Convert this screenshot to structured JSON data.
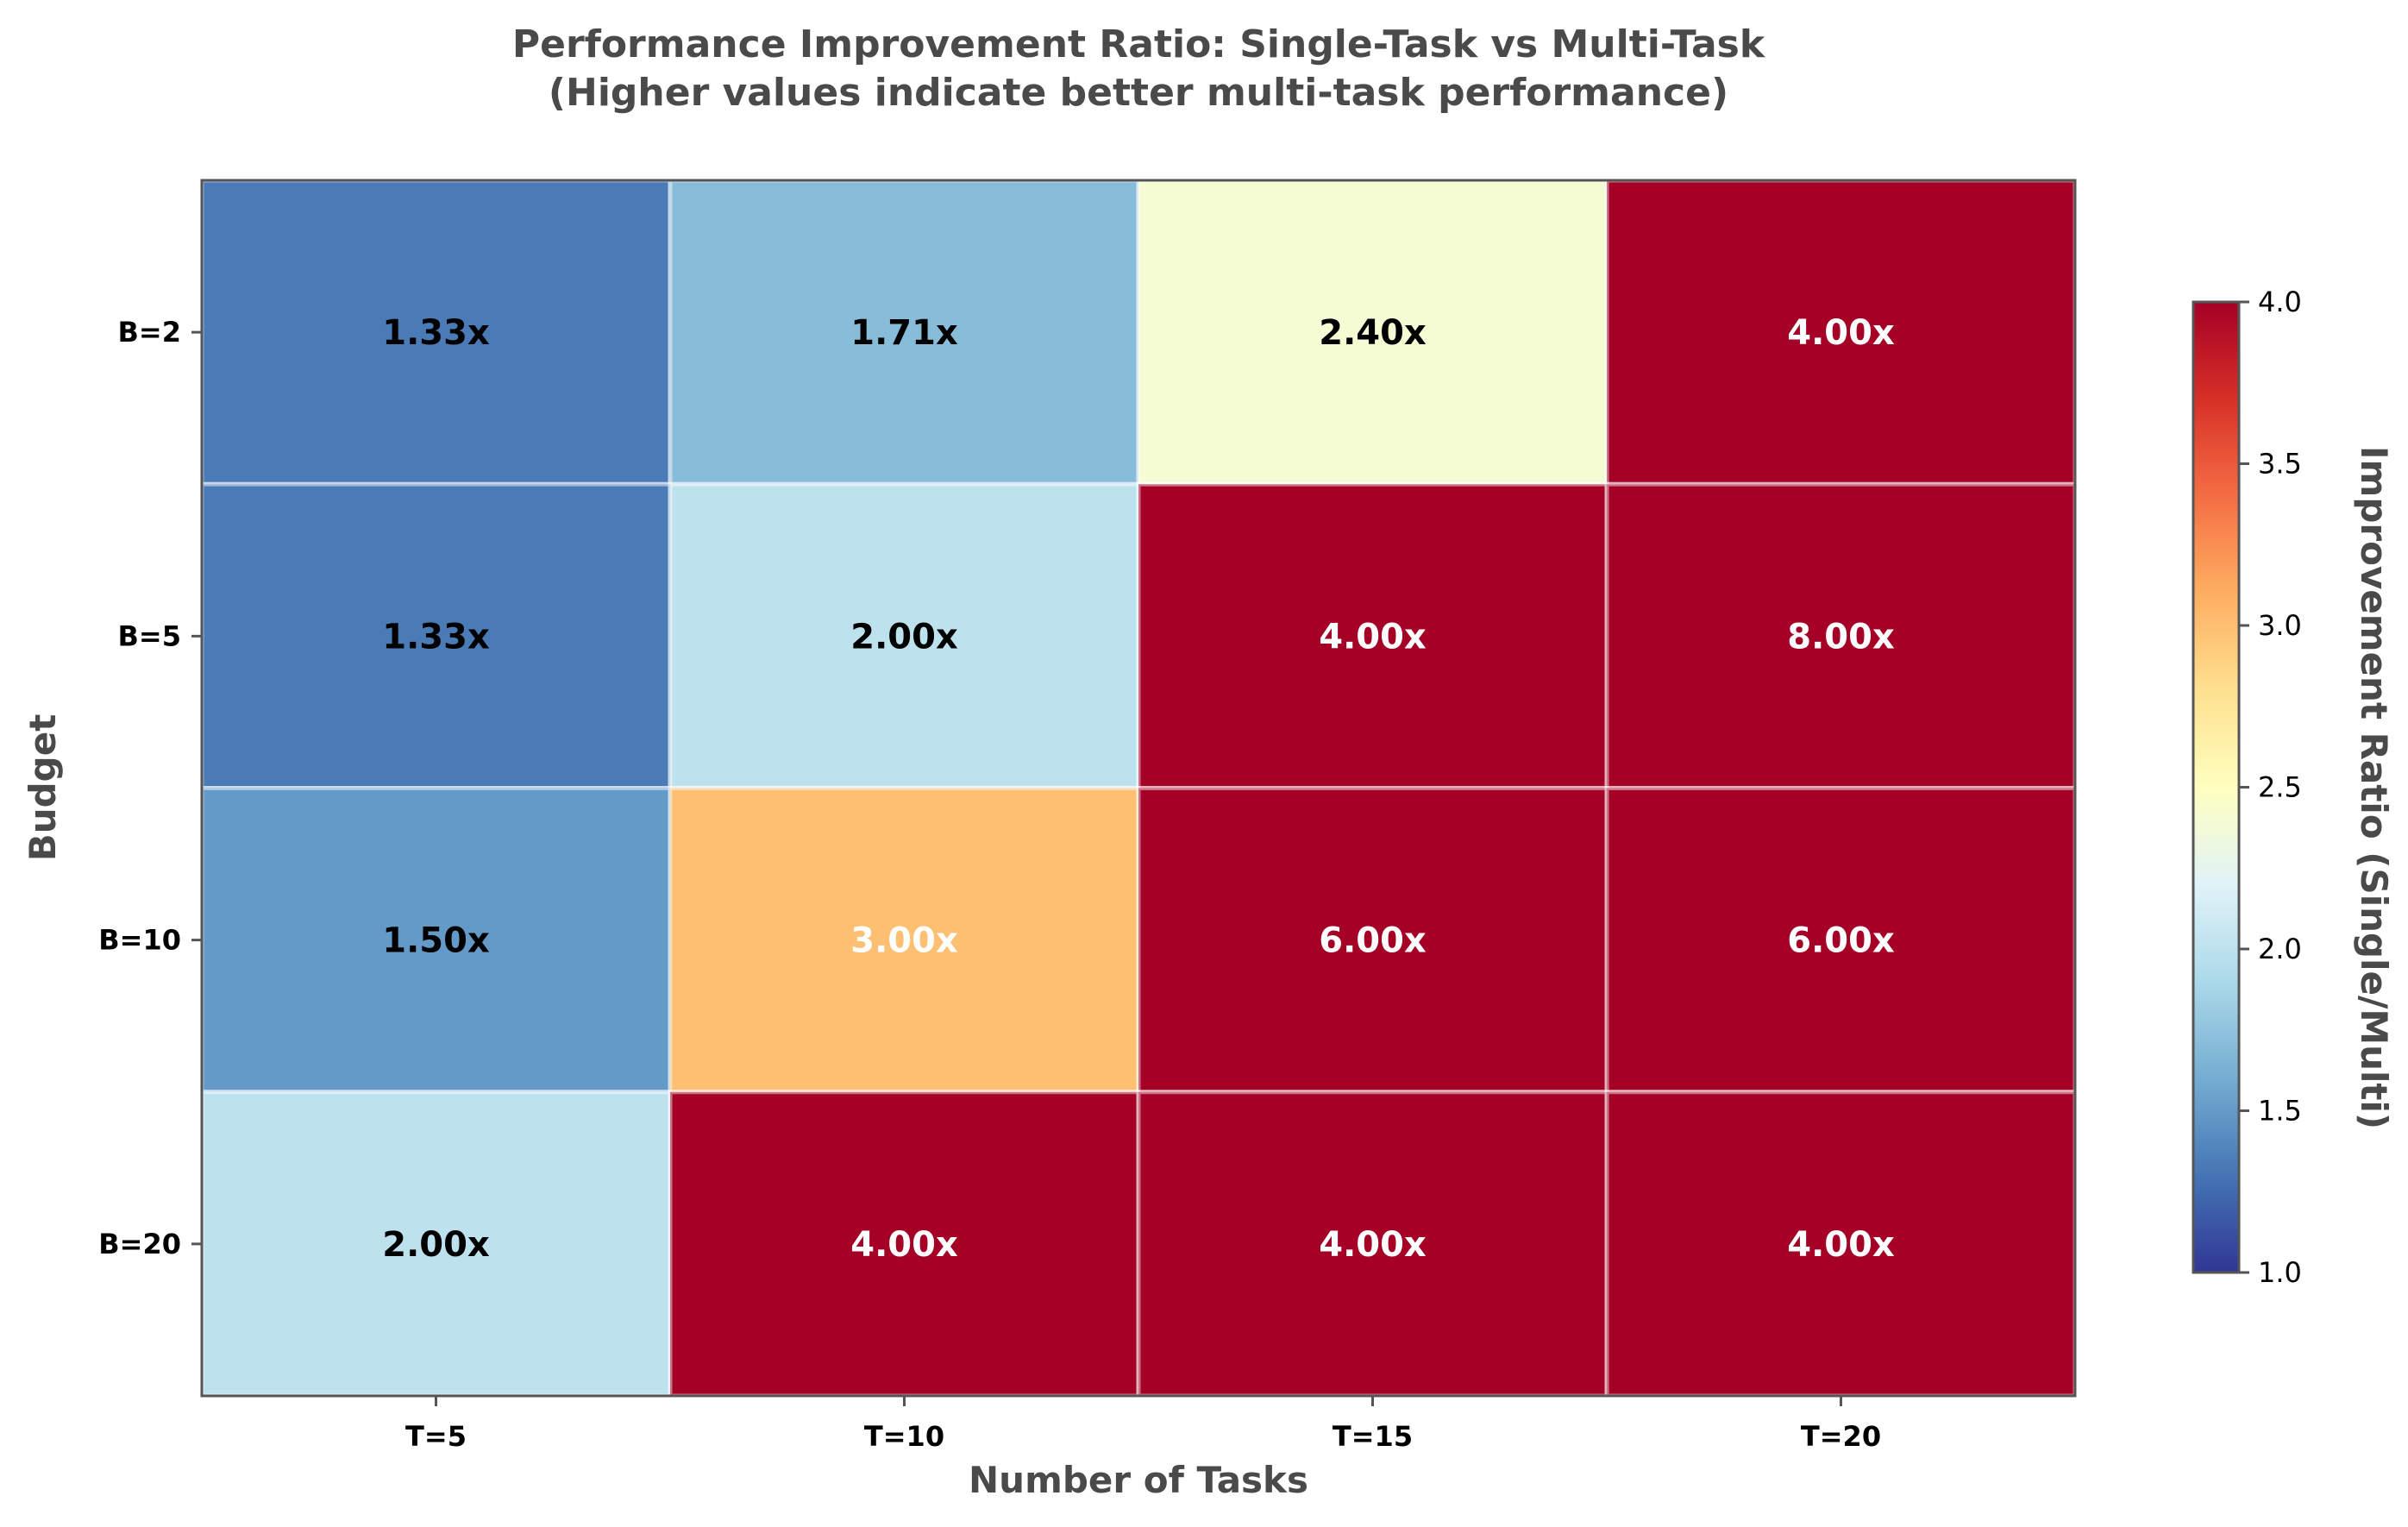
{
  "chart_data": {
    "type": "heatmap",
    "title_line1": "Performance Improvement Ratio: Single-Task vs Multi-Task",
    "title_line2": "(Higher values indicate better multi-task performance)",
    "xlabel": "Number of Tasks",
    "ylabel": "Budget",
    "x_categories": [
      "T=5",
      "T=10",
      "T=15",
      "T=20"
    ],
    "y_categories": [
      "B=2",
      "B=5",
      "B=10",
      "B=20"
    ],
    "values": [
      [
        1.33,
        1.71,
        2.4,
        4.0
      ],
      [
        1.33,
        2.0,
        4.0,
        8.0
      ],
      [
        1.5,
        3.0,
        6.0,
        6.0
      ],
      [
        2.0,
        4.0,
        4.0,
        4.0
      ]
    ],
    "cell_labels": [
      [
        "1.33x",
        "1.71x",
        "2.40x",
        "4.00x"
      ],
      [
        "1.33x",
        "2.00x",
        "4.00x",
        "8.00x"
      ],
      [
        "1.50x",
        "3.00x",
        "6.00x",
        "6.00x"
      ],
      [
        "2.00x",
        "4.00x",
        "4.00x",
        "4.00x"
      ]
    ],
    "colorbar": {
      "label": "Improvement Ratio (Single/Multi)",
      "vmin": 1.0,
      "vmax": 4.0,
      "ticks": [
        1.0,
        1.5,
        2.0,
        2.5,
        3.0,
        3.5,
        4.0
      ],
      "tick_labels": [
        "1.0",
        "1.5",
        "2.0",
        "2.5",
        "3.0",
        "3.5",
        "4.0"
      ],
      "colormap": "RdYlBu_r"
    },
    "label_colors": {
      "dark": "#000000",
      "light": "#ffffff"
    }
  }
}
